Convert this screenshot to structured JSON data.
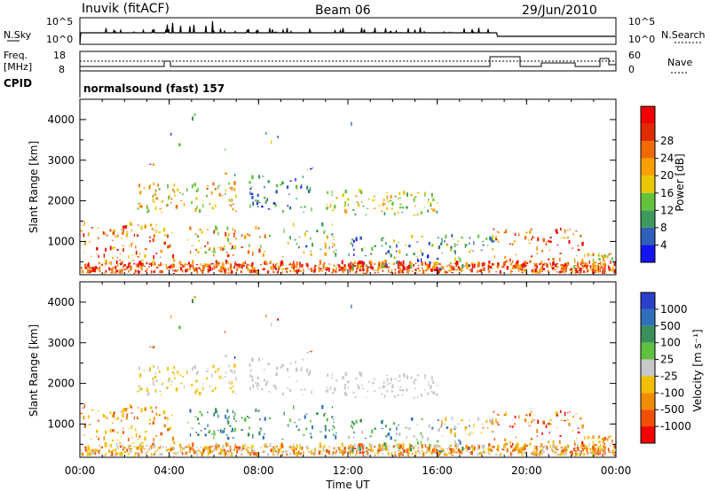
{
  "header": {
    "station": "Inuvik (fitACF)",
    "beam": "Beam 06",
    "date": "29/Jun/2010"
  },
  "top_panels": {
    "nsky_label": "N.Sky",
    "nsky_ticks": [
      "10^5",
      "10^0"
    ],
    "nsearch_label": "N.Search",
    "freq_label": "Freq.",
    "freq_unit": "[MHz]",
    "freq_ticks": [
      "18",
      "8"
    ],
    "nave_label": "Nave",
    "nave_ticks": [
      "60",
      "0"
    ],
    "cpid_label": "CPID",
    "cpid_value": "normalsound (fast) 157"
  },
  "chart_data": [
    {
      "type": "heatmap",
      "name": "power",
      "ylabel": "Slant Range [km]",
      "yticks": [
        "1000",
        "2000",
        "3000",
        "4000"
      ],
      "ylim": [
        180,
        4500
      ],
      "xlim": [
        0,
        24
      ],
      "colorbar_label": "Power [dB]",
      "colorbar_ticks": [
        "4",
        "8",
        "12",
        "16",
        "20",
        "24",
        "28"
      ],
      "colorbar_colors": [
        "#1414f0",
        "#2f5fb8",
        "#3d9a5c",
        "#64c33c",
        "#e8c800",
        "#f8a000",
        "#f06a00",
        "#e02a00",
        "#f00000"
      ],
      "colorbar_range": [
        0,
        32
      ]
    },
    {
      "type": "heatmap",
      "name": "velocity",
      "ylabel": "Slant Range [km]",
      "yticks": [
        "1000",
        "2000",
        "3000",
        "4000"
      ],
      "ylim": [
        180,
        4500
      ],
      "xlim": [
        0,
        24
      ],
      "colorbar_label": "Velocity [m s⁻¹]",
      "colorbar_ticks": [
        "1000",
        "500",
        "100",
        "25",
        "-25",
        "-100",
        "-500",
        "-1000"
      ],
      "colorbar_colors": [
        "#2a3fc8",
        "#2f6fb8",
        "#3a8f5a",
        "#5fc040",
        "#c8c8c8",
        "#f0c000",
        "#f08c00",
        "#f05000",
        "#f00000"
      ]
    }
  ],
  "xaxis": {
    "label": "Time UT",
    "ticks": [
      "00:00",
      "04:00",
      "08:00",
      "12:00",
      "16:00",
      "20:00",
      "00:00"
    ],
    "tick_hours": [
      0,
      4,
      8,
      12,
      16,
      20,
      24
    ]
  }
}
